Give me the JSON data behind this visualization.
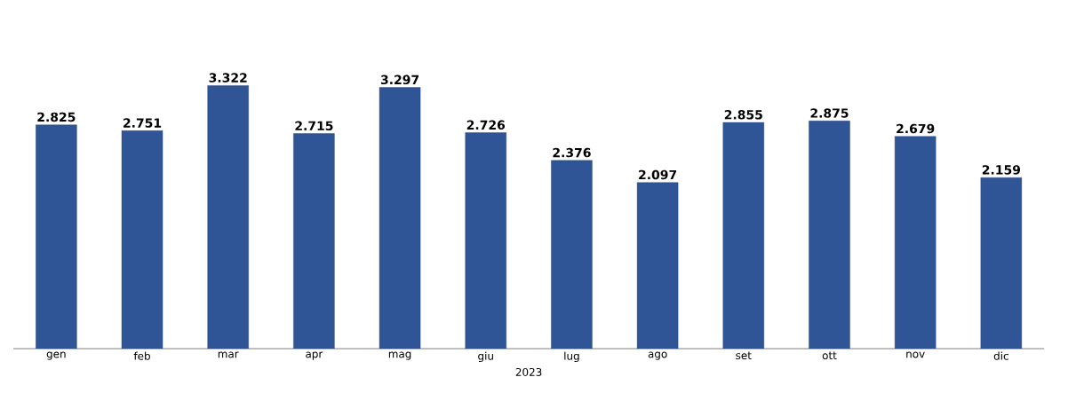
{
  "chart_data": {
    "type": "bar",
    "xlabel": "2023",
    "categories": [
      "gen",
      "feb",
      "mar",
      "apr",
      "mag",
      "giu",
      "lug",
      "ago",
      "set",
      "ott",
      "nov",
      "dic"
    ],
    "values": [
      2825,
      2751,
      3322,
      2715,
      3297,
      2726,
      2376,
      2097,
      2855,
      2875,
      2679,
      2159
    ],
    "value_labels": [
      "2.825",
      "2.751",
      "3.322",
      "2.715",
      "3.297",
      "2.726",
      "2.376",
      "2.097",
      "2.855",
      "2.875",
      "2.679",
      "2.159"
    ],
    "color": "#2f5597"
  }
}
